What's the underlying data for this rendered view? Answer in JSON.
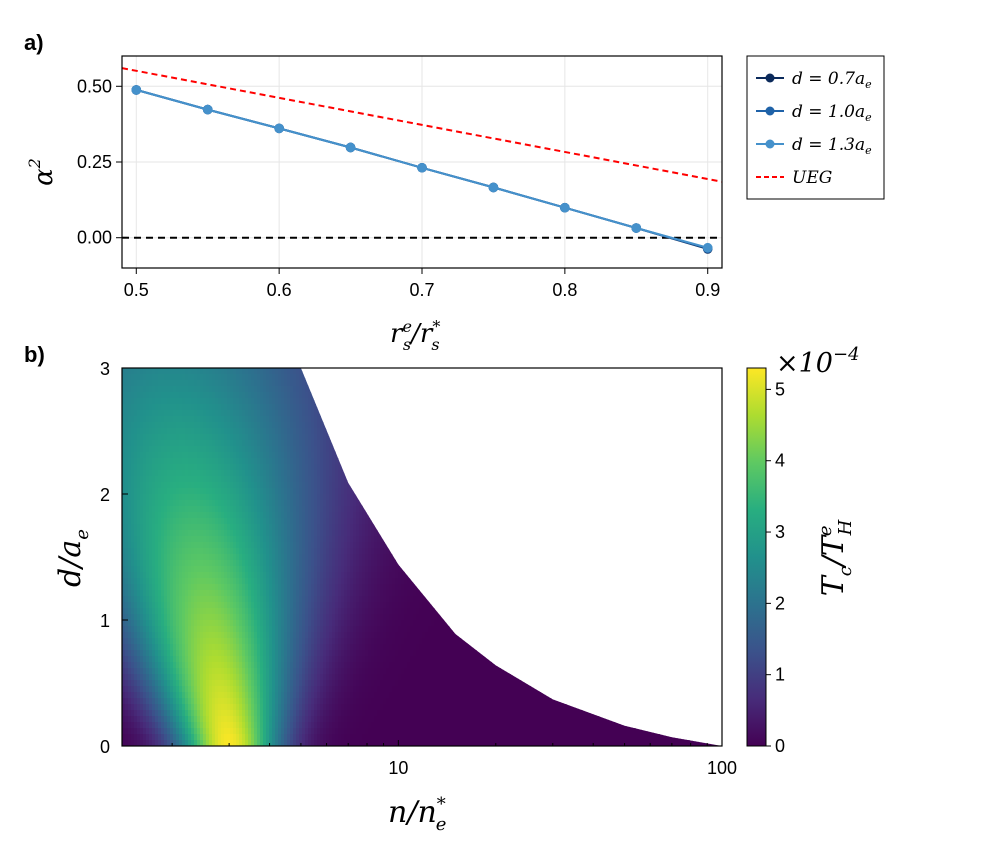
{
  "panels": {
    "a": {
      "label": "a)"
    },
    "b": {
      "label": "b)"
    }
  },
  "colors": {
    "series_07": "#0b2a5b",
    "series_10": "#1f62a8",
    "series_13": "#4591cb",
    "ueg": "#ff0000",
    "zero_line": "#000000",
    "grid": "#e6e6e6"
  },
  "chart_data": [
    {
      "type": "line",
      "panel": "a",
      "xlabel_parts": {
        "base": "r",
        "sub": "s",
        "sup": "e",
        "slash": "/",
        "base2": "r",
        "sub2": "s",
        "sup2": "*"
      },
      "ylabel_parts": {
        "base": "α",
        "sup": "2"
      },
      "xlim": [
        0.49,
        0.91
      ],
      "ylim": [
        -0.1,
        0.6
      ],
      "xticks": [
        "0.5",
        "0.6",
        "0.7",
        "0.8",
        "0.9"
      ],
      "yticks": [
        "0.00",
        "0.25",
        "0.50"
      ],
      "grid": true,
      "legend_position": "outside-right",
      "x": [
        0.5,
        0.55,
        0.6,
        0.65,
        0.7,
        0.75,
        0.8,
        0.85,
        0.9
      ],
      "series": [
        {
          "name": "d = 0.7a",
          "name_sub": "e",
          "style": "line-markers",
          "color_key": "series_07",
          "values": [
            0.488,
            0.423,
            0.361,
            0.298,
            0.231,
            0.166,
            0.099,
            0.032,
            -0.037
          ]
        },
        {
          "name": "d = 1.0a",
          "name_sub": "e",
          "style": "line-markers",
          "color_key": "series_10",
          "values": [
            0.488,
            0.423,
            0.361,
            0.298,
            0.231,
            0.166,
            0.099,
            0.032,
            -0.035
          ]
        },
        {
          "name": "d = 1.3a",
          "name_sub": "e",
          "style": "line-markers",
          "color_key": "series_13",
          "values": [
            0.488,
            0.423,
            0.361,
            0.298,
            0.231,
            0.166,
            0.099,
            0.032,
            -0.033
          ]
        },
        {
          "name": "UEG",
          "name_sub": "",
          "style": "dashed",
          "color_key": "ueg",
          "x": [
            0.49,
            0.91
          ],
          "values": [
            0.56,
            0.185
          ]
        }
      ],
      "reference_line": {
        "y": 0.0,
        "style": "dashed",
        "color_key": "zero_line"
      }
    },
    {
      "type": "heatmap",
      "panel": "b",
      "xlabel_parts": {
        "base": "n",
        "slash": "/",
        "base2": "n",
        "sub2": "e",
        "sup2": "*"
      },
      "ylabel_parts": {
        "base": "d",
        "slash": "/",
        "base2": "a",
        "sub2": "e"
      },
      "xscale": "log",
      "xlim": [
        1.4,
        100
      ],
      "ylim": [
        0,
        3
      ],
      "xticks": [
        "10",
        "100"
      ],
      "yticks": [
        "0",
        "1",
        "2",
        "3"
      ],
      "colormap": "viridis",
      "colorbar": {
        "label_parts": {
          "base": "T",
          "sub": "c",
          "slash": "/",
          "base2": "T",
          "sub2": "H",
          "sup2": "e"
        },
        "multiplier_parts": {
          "times": "×10",
          "exp": "−4"
        },
        "range": [
          0,
          5.3
        ],
        "ticks": [
          "0",
          "1",
          "2",
          "3",
          "4",
          "5"
        ]
      },
      "peak": {
        "x": 3.0,
        "y": 0.0,
        "value": 5.3
      },
      "boundary": {
        "x": [
          5.0,
          7.0,
          10.0,
          15.0,
          20.0,
          30.0,
          50.0,
          70.0,
          100.0
        ],
        "y": [
          3.0,
          2.09,
          1.44,
          0.89,
          0.64,
          0.37,
          0.16,
          0.07,
          0.0
        ]
      }
    }
  ]
}
